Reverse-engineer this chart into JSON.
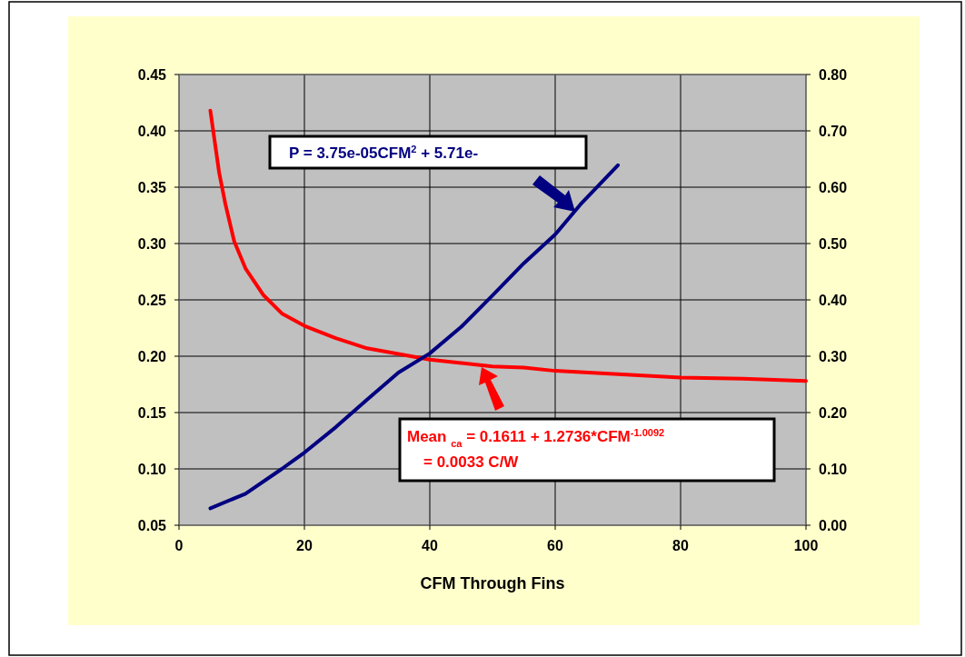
{
  "chart_data": {
    "type": "line",
    "xlabel": "CFM Through Fins",
    "xlim": [
      0,
      100
    ],
    "xticks": [
      0,
      20,
      40,
      60,
      80,
      100
    ],
    "ylim": [
      0.05,
      0.45
    ],
    "yticks": [
      {
        "value": 0.05,
        "label": "0.05"
      },
      {
        "value": 0.1,
        "label": "0.10"
      },
      {
        "value": 0.15,
        "label": "0.15"
      },
      {
        "value": 0.2,
        "label": "0.20"
      },
      {
        "value": 0.25,
        "label": "0.25"
      },
      {
        "value": 0.3,
        "label": "0.30"
      },
      {
        "value": 0.35,
        "label": "0.35"
      },
      {
        "value": 0.4,
        "label": "0.40"
      },
      {
        "value": 0.45,
        "label": "0.45"
      }
    ],
    "y2lim": [
      0,
      0.8
    ],
    "y2ticks": [
      {
        "value": 0,
        "label": "0.00"
      },
      {
        "value": 0.1,
        "label": "0.10"
      },
      {
        "value": 0.2,
        "label": "0.20"
      },
      {
        "value": 0.3,
        "label": "0.30"
      },
      {
        "value": 0.4,
        "label": "0.40"
      },
      {
        "value": 0.5,
        "label": "0.50"
      },
      {
        "value": 0.6,
        "label": "0.60"
      },
      {
        "value": 0.7,
        "label": "0.70"
      },
      {
        "value": 0.8,
        "label": "0.80"
      }
    ],
    "grid": true,
    "marker": "none",
    "line_style": "solid",
    "series": [
      {
        "color": "#ff0000",
        "x": [
          5,
          6.4,
          7.4,
          8.8,
          10.6,
          13.5,
          16.4,
          20,
          25,
          30,
          35,
          40,
          45,
          50,
          55,
          60,
          70,
          80,
          90,
          100
        ],
        "values": [
          0.418,
          0.363,
          0.335,
          0.302,
          0.278,
          0.254,
          0.238,
          0.227,
          0.216,
          0.207,
          0.202,
          0.197,
          0.194,
          0.191,
          0.19,
          0.187,
          0.184,
          0.181,
          0.18,
          0.178
        ]
      },
      {
        "color": "#000080",
        "axis": "y2",
        "x": [
          5,
          10.6,
          16.4,
          20,
          25,
          30,
          35,
          40,
          45,
          50,
          55,
          60,
          64,
          70
        ],
        "values": [
          0.03,
          0.056,
          0.1,
          0.129,
          0.174,
          0.223,
          0.271,
          0.305,
          0.352,
          0.408,
          0.465,
          0.516,
          0.569,
          0.639
        ]
      }
    ],
    "annotations": [
      "P = 3.75e-05CFM$^{2}$ + 5.71e-",
      "Mean $_{ca}$ = 0.1611 + 1.2736*CFM$^{-1.0092}$\n= 0.0033 C/W"
    ]
  }
}
